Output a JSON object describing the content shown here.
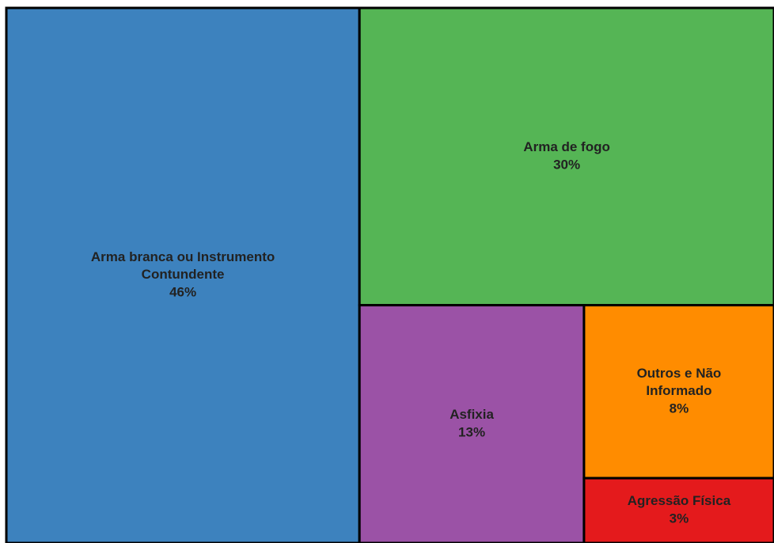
{
  "chart_data": {
    "type": "treemap",
    "categories": [
      "Arma branca ou Instrumento Contundente",
      "Arma de fogo",
      "Asfixia",
      "Outros e Não Informado",
      "Agressão Física"
    ],
    "values": [
      46,
      30,
      13,
      8,
      3
    ],
    "value_labels": [
      "46%",
      "30%",
      "13%",
      "8%",
      "3%"
    ],
    "colors": [
      "#3d82be",
      "#55b555",
      "#9b52a6",
      "#ff8c00",
      "#e41a1c"
    ]
  }
}
